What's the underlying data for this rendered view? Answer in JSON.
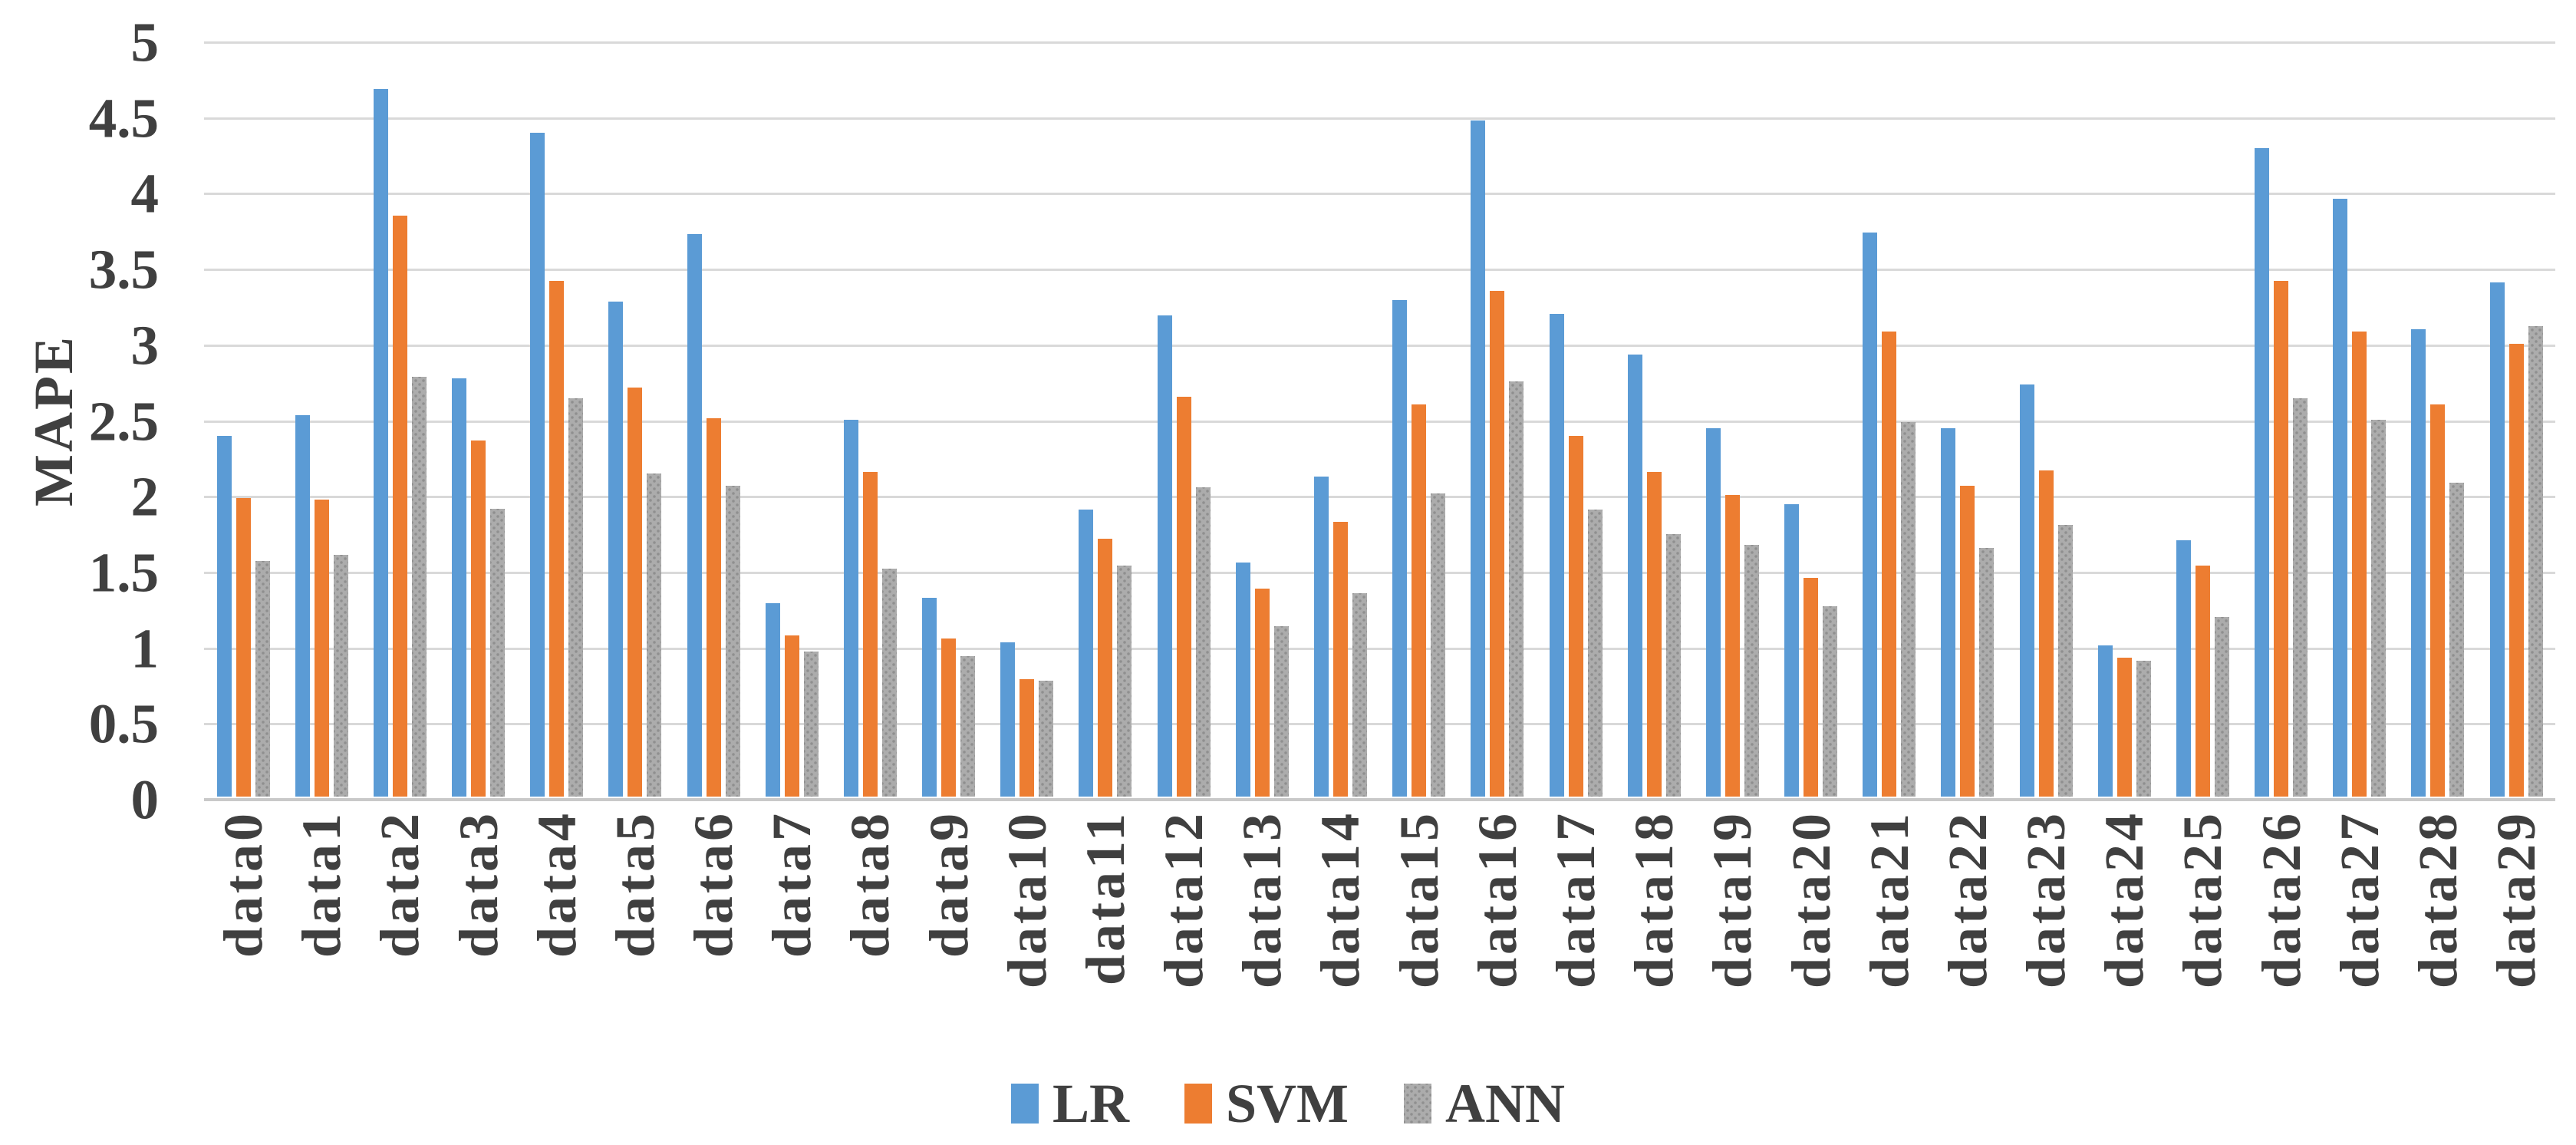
{
  "colors": {
    "series_lr": "#5b9bd5",
    "series_svm": "#ed7d31",
    "series_ann": "#acacac",
    "gridline": "#d9d9d9",
    "axis_line": "#c9c9c9",
    "text": "#404040",
    "background": "#ffffff"
  },
  "chart_data": {
    "type": "bar",
    "title": "",
    "xlabel": "",
    "ylabel": "MAPE",
    "ylim": [
      0,
      5
    ],
    "yticks": [
      0,
      0.5,
      1,
      1.5,
      2,
      2.5,
      3,
      3.5,
      4,
      4.5,
      5
    ],
    "grid": true,
    "legend_position": "bottom",
    "categories": [
      "data0",
      "data1",
      "data2",
      "data3",
      "data4",
      "data5",
      "data6",
      "data7",
      "data8",
      "data9",
      "data10",
      "data11",
      "data12",
      "data13",
      "data14",
      "data15",
      "data16",
      "data17",
      "data18",
      "data19",
      "data20",
      "data21",
      "data22",
      "data23",
      "data24",
      "data25",
      "data26",
      "data27",
      "data28",
      "data29"
    ],
    "series": [
      {
        "name": "LR",
        "color": "#5b9bd5",
        "pattern": "solid",
        "values": [
          2.39,
          2.53,
          4.69,
          2.77,
          4.4,
          3.28,
          3.73,
          1.28,
          2.5,
          1.32,
          1.02,
          1.9,
          3.19,
          1.55,
          2.12,
          3.29,
          4.48,
          3.2,
          2.93,
          2.44,
          1.94,
          3.74,
          2.44,
          2.73,
          1.0,
          1.7,
          4.3,
          3.96,
          3.1,
          3.41
        ]
      },
      {
        "name": "SVM",
        "color": "#ed7d31",
        "pattern": "solid",
        "values": [
          1.98,
          1.97,
          3.85,
          2.36,
          3.42,
          2.71,
          2.51,
          1.07,
          2.15,
          1.05,
          0.78,
          1.71,
          2.65,
          1.38,
          1.82,
          2.6,
          3.35,
          2.39,
          2.15,
          2.0,
          1.45,
          3.08,
          2.06,
          2.16,
          0.92,
          1.53,
          3.42,
          3.08,
          2.6,
          3.0
        ]
      },
      {
        "name": "ANN",
        "color": "#acacac",
        "pattern": "dots",
        "values": [
          1.56,
          1.6,
          2.78,
          1.91,
          2.64,
          2.14,
          2.06,
          0.96,
          1.51,
          0.93,
          0.77,
          1.53,
          2.05,
          1.13,
          1.35,
          2.01,
          2.75,
          1.9,
          1.74,
          1.67,
          1.26,
          2.48,
          1.65,
          1.8,
          0.9,
          1.19,
          2.64,
          2.5,
          2.08,
          3.12
        ]
      }
    ]
  }
}
